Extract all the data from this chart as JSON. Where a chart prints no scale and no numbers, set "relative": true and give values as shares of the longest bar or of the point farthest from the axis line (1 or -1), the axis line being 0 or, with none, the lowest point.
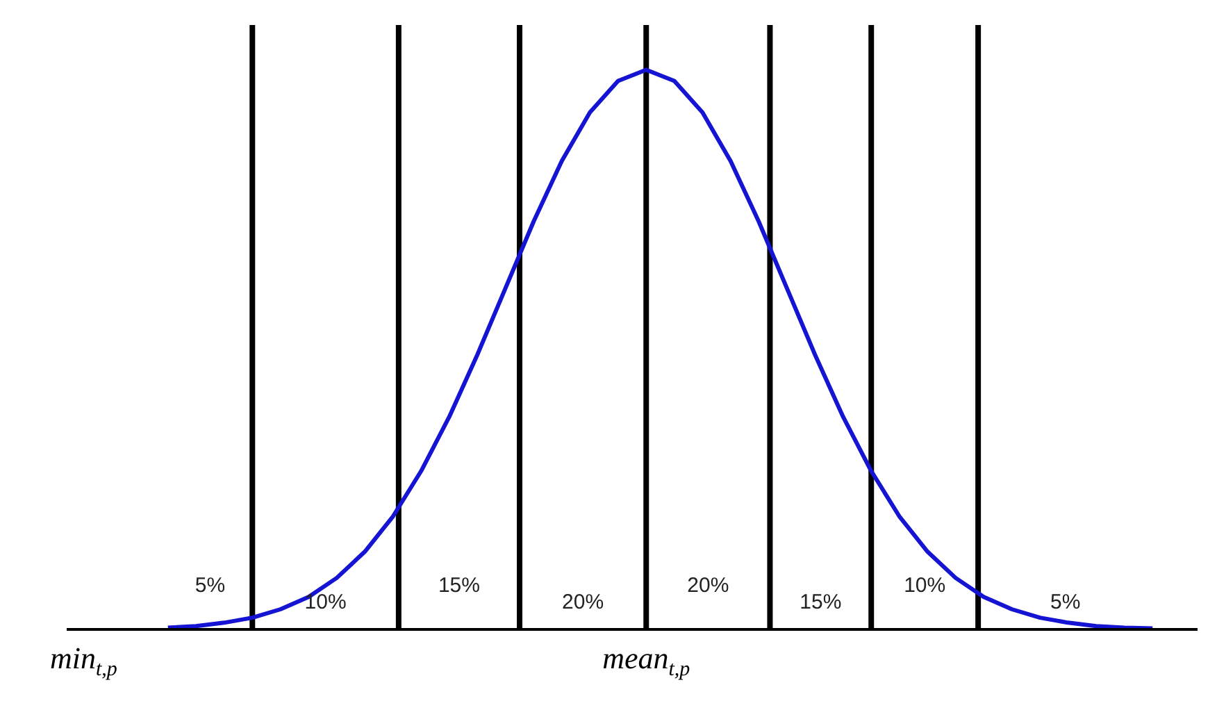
{
  "chart_data": {
    "type": "line",
    "relative": true,
    "categories": [
      "min$_{t,p}$",
      null,
      null,
      null,
      null,
      null,
      null,
      null,
      null,
      null,
      null,
      null,
      null,
      null,
      null,
      null,
      null,
      null,
      null,
      null,
      "mean$_{t,p}$",
      null,
      null,
      null,
      null,
      null,
      null,
      null,
      null,
      null,
      null,
      null,
      null,
      null,
      null,
      null,
      null,
      null,
      null,
      null
    ],
    "series": [
      {
        "color": "#1414d2",
        "values": [
          null,
          null,
          null,
          0.003,
          0.006,
          0.012,
          0.021,
          0.036,
          0.058,
          0.092,
          0.139,
          0.202,
          0.283,
          0.38,
          0.491,
          0.61,
          0.729,
          0.837,
          0.924,
          0.98,
          1,
          0.98,
          0.924,
          0.837,
          0.729,
          0.61,
          0.491,
          0.38,
          0.283,
          0.202,
          0.139,
          0.092,
          0.058,
          0.036,
          0.021,
          0.012,
          0.006,
          0.003,
          0.002,
          null
        ]
      }
    ],
    "grid": "x",
    "annotations": [
      "5%",
      "10%",
      "15%",
      "20%",
      "20%",
      "15%",
      "10%",
      "5%"
    ]
  }
}
